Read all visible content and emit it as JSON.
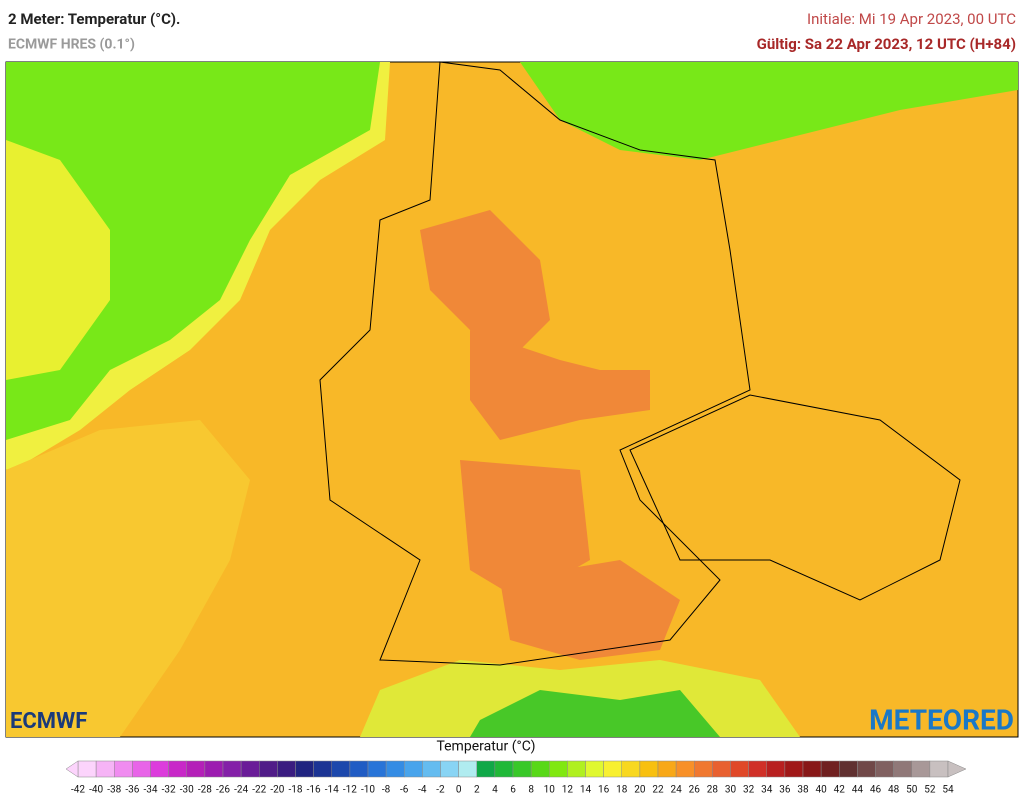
{
  "header": {
    "title": "2 Meter: Temperatur (°C).",
    "subtitle": "ECMWF HRES (0.1°)",
    "init": "Initiale: Mi 19 Apr 2023, 00 UTC",
    "valid": "Gültig: Sa 22 Apr 2023, 12 UTC (H+84)"
  },
  "logos": {
    "left": "ECMWF",
    "right": "METEORED"
  },
  "colorbar": {
    "title": "Temperatur (°C)",
    "ticks": [
      -42,
      -40,
      -38,
      -36,
      -34,
      -32,
      -30,
      -28,
      -26,
      -24,
      -22,
      -20,
      -18,
      -16,
      -14,
      -12,
      -10,
      -8,
      -6,
      -4,
      -2,
      0,
      2,
      4,
      6,
      8,
      10,
      12,
      14,
      16,
      18,
      20,
      22,
      24,
      26,
      28,
      30,
      32,
      34,
      36,
      38,
      40,
      42,
      44,
      46,
      48,
      50,
      52,
      54
    ],
    "colors": [
      "#fcd4fc",
      "#f6b4f6",
      "#f08cf0",
      "#e864e8",
      "#dc3cdc",
      "#c828c8",
      "#b420b8",
      "#9c1cb0",
      "#8420a8",
      "#6a1c98",
      "#501c88",
      "#3a1c80",
      "#202480",
      "#1c3494",
      "#1c48ac",
      "#205cc4",
      "#2874d8",
      "#348ce4",
      "#48a4ec",
      "#64bcf0",
      "#88d4f4",
      "#b0ecf0",
      "#10a848",
      "#20b838",
      "#38c828",
      "#58d818",
      "#80e810",
      "#b0f020",
      "#e0f830",
      "#f8f030",
      "#f8d820",
      "#f8c010",
      "#f8a818",
      "#f89028",
      "#f07830",
      "#e86030",
      "#e04828",
      "#d03028",
      "#b82020",
      "#a01818",
      "#881818",
      "#702020",
      "#603030",
      "#704848",
      "#806060",
      "#907878",
      "#a89898",
      "#c8c0c0"
    ]
  }
}
